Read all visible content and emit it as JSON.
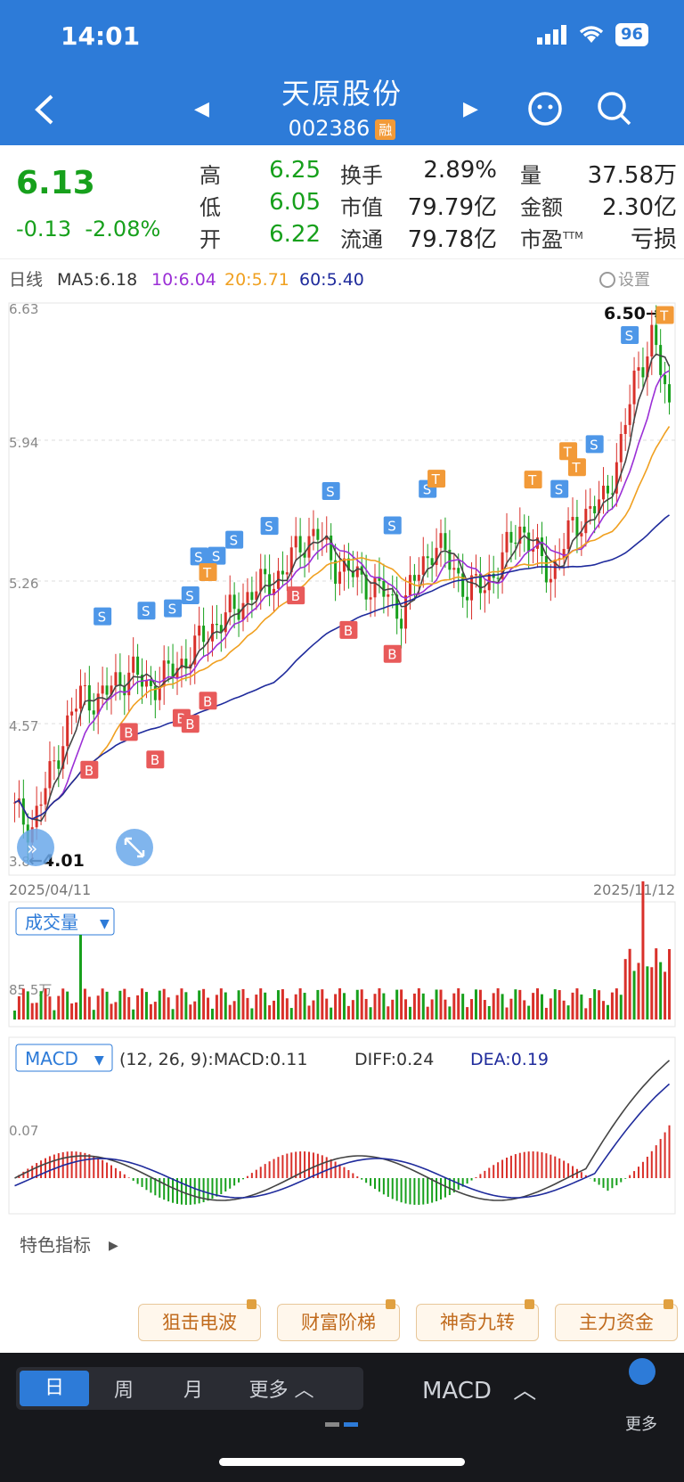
{
  "status": {
    "time": "14:01",
    "battery": "96"
  },
  "stock": {
    "name": "天原股份",
    "code": "002386",
    "badge": "融"
  },
  "quote": {
    "price": "6.13",
    "change": "-0.13",
    "change_pct": "-2.08%",
    "rows": [
      {
        "l1": "高",
        "v1": "6.25",
        "l2": "换手",
        "v2": "2.89%",
        "l3": "量",
        "v3": "37.58万"
      },
      {
        "l1": "低",
        "v1": "6.05",
        "l2": "市值",
        "v2": "79.79亿",
        "l3": "金额",
        "v3": "2.30亿"
      },
      {
        "l1": "开",
        "v1": "6.22",
        "l2": "流通",
        "v2": "79.78亿",
        "l3": "市盈",
        "v3": "亏损",
        "ttm": "TTM"
      }
    ]
  },
  "kline": {
    "period_label": "日线",
    "ma5": "MA5:6.18",
    "ma10": "10:6.04",
    "ma20": "20:5.71",
    "ma60": "60:5.40",
    "settings": "设置",
    "y_ticks": [
      "6.63",
      "5.94",
      "5.26",
      "4.57",
      "3.8"
    ],
    "high_mark": "6.50→",
    "low_mark": "←4.01",
    "date_start": "2025/04/11",
    "date_end": "2025/11/12"
  },
  "volume": {
    "selector": "成交量",
    "y_tick": "85.5万"
  },
  "macd": {
    "selector": "MACD",
    "params": "(12, 26, 9):MACD:0.11",
    "diff": "DIFF:0.24",
    "dea": "DEA:0.19",
    "y_tick": "0.07"
  },
  "features": {
    "label": "特色指标",
    "items": [
      "狙击电波",
      "财富阶梯",
      "神奇九转",
      "主力资金"
    ]
  },
  "bottom": {
    "periods": [
      "日",
      "周",
      "月",
      "更多"
    ],
    "indicator": "MACD",
    "more": "更多"
  },
  "colors": {
    "accent": "#2d7bd8",
    "up": "#d9302a",
    "down": "#17a01c",
    "ma10": "#9b2fd6",
    "ma20": "#f0a020",
    "ma60": "#1f2b9c"
  },
  "chart_data": {
    "type": "candlestick",
    "title": "",
    "x_range": [
      "2025/04/11",
      "2025/11/12"
    ],
    "ylim": [
      3.8,
      6.63
    ],
    "y_ticks": [
      6.63,
      5.94,
      5.26,
      4.57,
      3.8
    ],
    "close_series": [
      4.1,
      4.01,
      4.25,
      4.5,
      4.7,
      4.65,
      4.75,
      4.8,
      4.72,
      4.78,
      4.85,
      4.95,
      5.05,
      5.1,
      5.2,
      5.25,
      5.3,
      5.45,
      5.5,
      5.35,
      5.3,
      5.25,
      5.2,
      5.1,
      5.3,
      5.45,
      5.35,
      5.2,
      5.25,
      5.35,
      5.55,
      5.4,
      5.3,
      5.5,
      5.6,
      5.65,
      5.9,
      6.3,
      6.5,
      6.13
    ],
    "annotations": {
      "S": 14,
      "T": 6,
      "B": 10
    }
  }
}
